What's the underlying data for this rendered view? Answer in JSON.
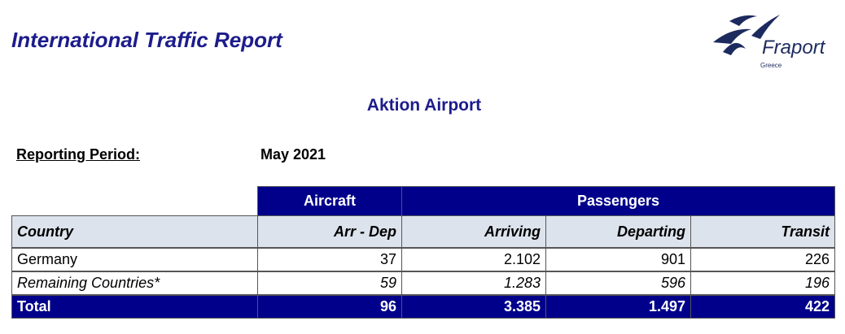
{
  "header": {
    "title": "International Traffic Report",
    "logo": {
      "name": "Fraport",
      "region": "Greece"
    }
  },
  "subtitle": "Aktion Airport",
  "reporting_period": {
    "label": "Reporting Period:",
    "value": "May 2021"
  },
  "table": {
    "group_headers": [
      "Aircraft",
      "Passengers"
    ],
    "columns": [
      "Country",
      "Arr - Dep",
      "Arriving",
      "Departing",
      "Transit"
    ],
    "rows": [
      [
        "Germany",
        37,
        "2.102",
        901,
        226
      ],
      [
        "Remaining Countries*",
        59,
        "1.283",
        596,
        196
      ]
    ],
    "total": [
      "Total",
      96,
      "3.385",
      "1.497",
      422
    ]
  }
}
